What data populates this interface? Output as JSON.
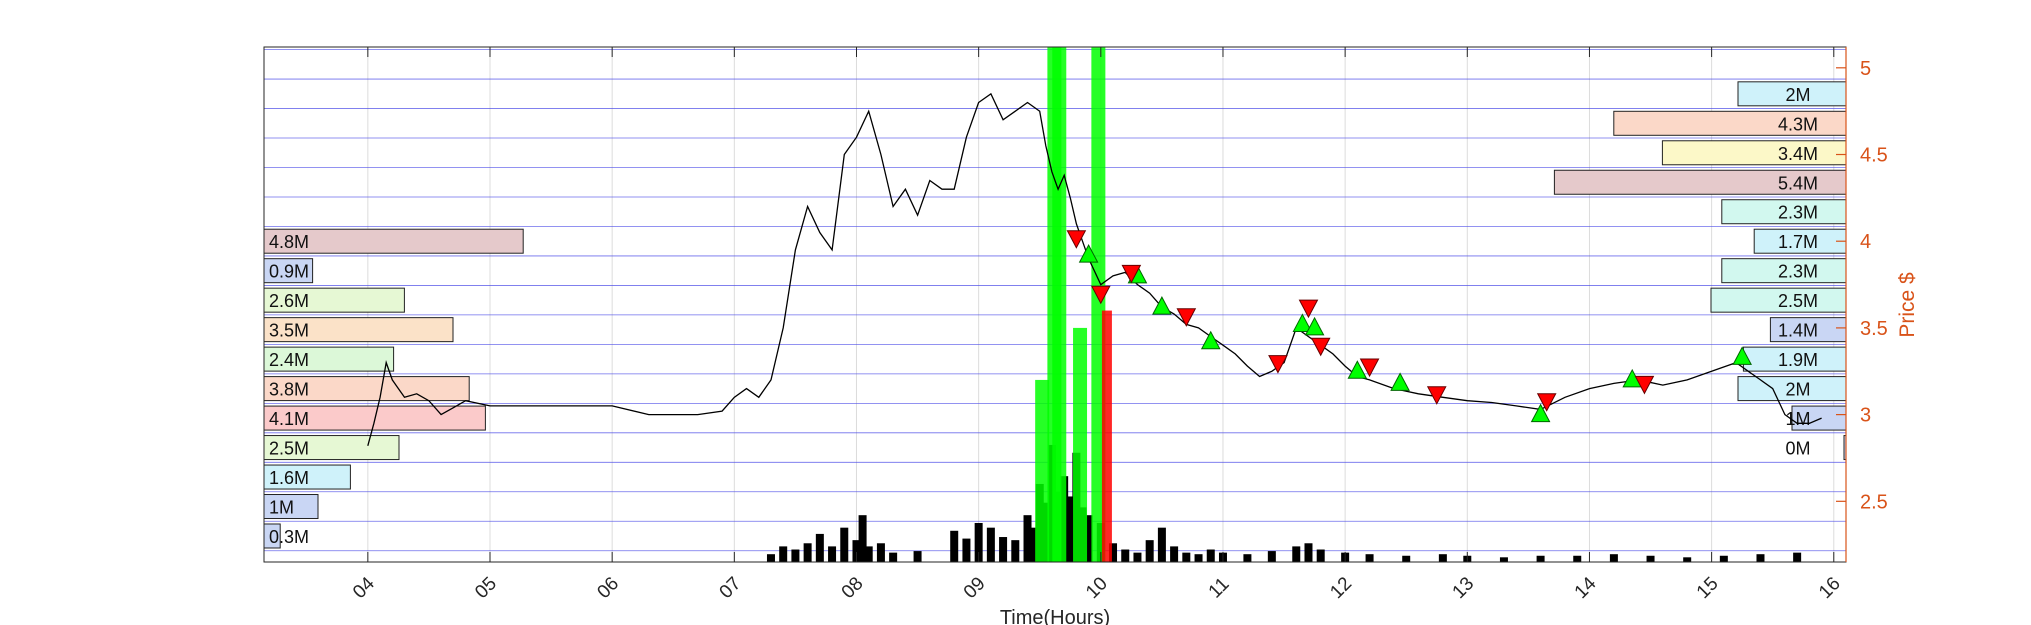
{
  "chart_data": {
    "type": "line",
    "title": "",
    "xlabel": "Time(Hours)",
    "ylabel": "Price $",
    "xlim": [
      3.15,
      16.1
    ],
    "ylim": [
      2.15,
      5.12
    ],
    "grid": true,
    "x_ticks": [
      "04",
      "05",
      "06",
      "07",
      "08",
      "09",
      "10",
      "11",
      "12",
      "13",
      "14",
      "15",
      "16"
    ],
    "y_ticks": [
      "2.5",
      "3",
      "3.5",
      "4",
      "4.5",
      "5"
    ],
    "price_series": {
      "name": "",
      "x": [
        4.0,
        4.05,
        4.1,
        4.15,
        4.2,
        4.25,
        4.3,
        4.4,
        4.5,
        4.6,
        4.7,
        4.8,
        5.0,
        5.5,
        6.0,
        6.3,
        6.7,
        6.9,
        7.0,
        7.1,
        7.2,
        7.3,
        7.4,
        7.5,
        7.6,
        7.7,
        7.8,
        7.9,
        8.0,
        8.1,
        8.2,
        8.3,
        8.4,
        8.5,
        8.6,
        8.7,
        8.8,
        8.9,
        9.0,
        9.1,
        9.2,
        9.3,
        9.4,
        9.5,
        9.55,
        9.6,
        9.65,
        9.7,
        9.75,
        9.8,
        9.85,
        9.9,
        10.0,
        10.1,
        10.2,
        10.3,
        10.4,
        10.5,
        10.6,
        10.7,
        10.8,
        10.9,
        11.0,
        11.1,
        11.2,
        11.3,
        11.4,
        11.5,
        11.6,
        11.7,
        11.8,
        11.9,
        12.0,
        12.1,
        12.2,
        12.4,
        12.6,
        12.8,
        13.0,
        13.2,
        13.4,
        13.6,
        13.8,
        14.0,
        14.2,
        14.4,
        14.6,
        14.8,
        15.0,
        15.2,
        15.3,
        15.4,
        15.5,
        15.6,
        15.7,
        15.8,
        15.9
      ],
      "values": [
        2.82,
        2.95,
        3.1,
        3.3,
        3.2,
        3.15,
        3.1,
        3.12,
        3.08,
        3.0,
        3.04,
        3.08,
        3.05,
        3.05,
        3.05,
        3.0,
        3.0,
        3.02,
        3.1,
        3.15,
        3.1,
        3.2,
        3.5,
        3.95,
        4.2,
        4.05,
        3.95,
        4.5,
        4.6,
        4.75,
        4.5,
        4.2,
        4.3,
        4.15,
        4.35,
        4.3,
        4.3,
        4.6,
        4.8,
        4.85,
        4.7,
        4.75,
        4.8,
        4.75,
        4.55,
        4.4,
        4.3,
        4.38,
        4.25,
        4.1,
        4.0,
        3.9,
        3.75,
        3.8,
        3.82,
        3.75,
        3.7,
        3.62,
        3.58,
        3.52,
        3.5,
        3.45,
        3.4,
        3.35,
        3.28,
        3.22,
        3.25,
        3.3,
        3.5,
        3.45,
        3.4,
        3.35,
        3.28,
        3.22,
        3.2,
        3.15,
        3.12,
        3.1,
        3.08,
        3.07,
        3.05,
        3.03,
        3.1,
        3.15,
        3.18,
        3.2,
        3.17,
        3.2,
        3.25,
        3.3,
        3.25,
        3.2,
        3.15,
        3.0,
        2.95,
        2.95,
        2.98
      ]
    },
    "buy_signals": [
      {
        "x": 9.9,
        "y": 3.92
      },
      {
        "x": 10.3,
        "y": 3.8
      },
      {
        "x": 10.5,
        "y": 3.62
      },
      {
        "x": 10.9,
        "y": 3.42
      },
      {
        "x": 11.65,
        "y": 3.52
      },
      {
        "x": 11.75,
        "y": 3.5
      },
      {
        "x": 12.1,
        "y": 3.25
      },
      {
        "x": 12.45,
        "y": 3.18
      },
      {
        "x": 13.6,
        "y": 3.0
      },
      {
        "x": 14.35,
        "y": 3.2
      },
      {
        "x": 15.25,
        "y": 3.33
      }
    ],
    "sell_signals": [
      {
        "x": 9.8,
        "y": 4.02
      },
      {
        "x": 10.0,
        "y": 3.7
      },
      {
        "x": 10.25,
        "y": 3.82
      },
      {
        "x": 10.7,
        "y": 3.57
      },
      {
        "x": 11.45,
        "y": 3.3
      },
      {
        "x": 11.7,
        "y": 3.62
      },
      {
        "x": 11.8,
        "y": 3.4
      },
      {
        "x": 12.2,
        "y": 3.28
      },
      {
        "x": 12.75,
        "y": 3.12
      },
      {
        "x": 13.65,
        "y": 3.08
      },
      {
        "x": 14.45,
        "y": 3.18
      }
    ],
    "volume_profile_left": [
      {
        "label": "4.8M",
        "price": 4.0,
        "millions": 4.8,
        "color": "#e5c9cb"
      },
      {
        "label": "0.9M",
        "price": 3.83,
        "millions": 0.9,
        "color": "#c9d6f4"
      },
      {
        "label": "2.6M",
        "price": 3.66,
        "millions": 2.6,
        "color": "#e6f8d4"
      },
      {
        "label": "3.5M",
        "price": 3.49,
        "millions": 3.5,
        "color": "#fbe2c8"
      },
      {
        "label": "2.4M",
        "price": 3.32,
        "millions": 2.4,
        "color": "#dcf8d8"
      },
      {
        "label": "3.8M",
        "price": 3.15,
        "millions": 3.8,
        "color": "#fbd8c8"
      },
      {
        "label": "4.1M",
        "price": 2.98,
        "millions": 4.1,
        "color": "#fbcaca"
      },
      {
        "label": "2.5M",
        "price": 2.81,
        "millions": 2.5,
        "color": "#e6f8d4"
      },
      {
        "label": "1.6M",
        "price": 2.64,
        "millions": 1.6,
        "color": "#cff2fa"
      },
      {
        "label": "1M",
        "price": 2.47,
        "millions": 1.0,
        "color": "#c9d6f4"
      },
      {
        "label": "0.3M",
        "price": 2.3,
        "millions": 0.3,
        "color": "#c9d6f4"
      }
    ],
    "volume_profile_right": [
      {
        "label": "2M",
        "price": 4.85,
        "millions": 2.0,
        "color": "#cff2fa"
      },
      {
        "label": "4.3M",
        "price": 4.68,
        "millions": 4.3,
        "color": "#fbd8c8"
      },
      {
        "label": "3.4M",
        "price": 4.51,
        "millions": 3.4,
        "color": "#fcf8c8"
      },
      {
        "label": "5.4M",
        "price": 4.34,
        "millions": 5.4,
        "color": "#e5c9cb"
      },
      {
        "label": "2.3M",
        "price": 4.17,
        "millions": 2.3,
        "color": "#d2f8ef"
      },
      {
        "label": "1.7M",
        "price": 4.0,
        "millions": 1.7,
        "color": "#cff2fa"
      },
      {
        "label": "2.3M",
        "price": 3.83,
        "millions": 2.3,
        "color": "#d2f8ef"
      },
      {
        "label": "2.5M",
        "price": 3.66,
        "millions": 2.5,
        "color": "#d2f8ef"
      },
      {
        "label": "1.4M",
        "price": 3.49,
        "millions": 1.4,
        "color": "#c9d6f4"
      },
      {
        "label": "1.9M",
        "price": 3.32,
        "millions": 1.9,
        "color": "#cff2fa"
      },
      {
        "label": "2M",
        "price": 3.15,
        "millions": 2.0,
        "color": "#cff2fa"
      },
      {
        "label": "1M",
        "price": 2.98,
        "millions": 1.0,
        "color": "#c9d6f4"
      },
      {
        "label": "0M",
        "price": 2.81,
        "millions": 0.0,
        "color": "#c9d6f4"
      }
    ],
    "volume_bars": {
      "x": [
        7.3,
        7.4,
        7.5,
        7.6,
        7.7,
        7.8,
        7.9,
        8.0,
        8.05,
        8.1,
        8.2,
        8.3,
        8.5,
        8.8,
        8.9,
        9.0,
        9.1,
        9.2,
        9.3,
        9.4,
        9.45,
        9.5,
        9.55,
        9.6,
        9.65,
        9.7,
        9.75,
        9.8,
        9.85,
        9.9,
        10.0,
        10.1,
        10.2,
        10.3,
        10.4,
        10.5,
        10.6,
        10.7,
        10.8,
        10.9,
        11.0,
        11.2,
        11.4,
        11.6,
        11.7,
        11.8,
        12.0,
        12.2,
        12.5,
        12.8,
        13.0,
        13.3,
        13.6,
        13.9,
        14.2,
        14.5,
        14.8,
        15.1,
        15.4,
        15.7
      ],
      "values": [
        0.05,
        0.1,
        0.08,
        0.12,
        0.18,
        0.1,
        0.22,
        0.14,
        0.3,
        0.1,
        0.12,
        0.06,
        0.07,
        0.2,
        0.15,
        0.25,
        0.22,
        0.16,
        0.14,
        0.3,
        0.22,
        0.5,
        0.38,
        0.75,
        0.45,
        0.55,
        0.42,
        0.7,
        0.35,
        0.3,
        0.25,
        0.12,
        0.08,
        0.06,
        0.14,
        0.22,
        0.1,
        0.06,
        0.05,
        0.08,
        0.06,
        0.05,
        0.07,
        0.1,
        0.12,
        0.08,
        0.06,
        0.05,
        0.04,
        0.05,
        0.04,
        0.03,
        0.04,
        0.04,
        0.05,
        0.04,
        0.03,
        0.04,
        0.05,
        0.06
      ]
    },
    "buy_volume_bars": {
      "x": [
        9.62,
        9.66,
        9.98,
        9.52,
        9.83
      ],
      "values": [
        5.12,
        5.12,
        5.12,
        3.2,
        3.5
      ]
    },
    "sell_volume_bars": {
      "x": [
        10.05
      ],
      "values": [
        3.6
      ]
    },
    "colors": {
      "axis_right": "#d95319",
      "grid": "#4a4ae8",
      "price_line": "#000000",
      "buy": "#00ff00",
      "sell": "#ff0000"
    }
  }
}
